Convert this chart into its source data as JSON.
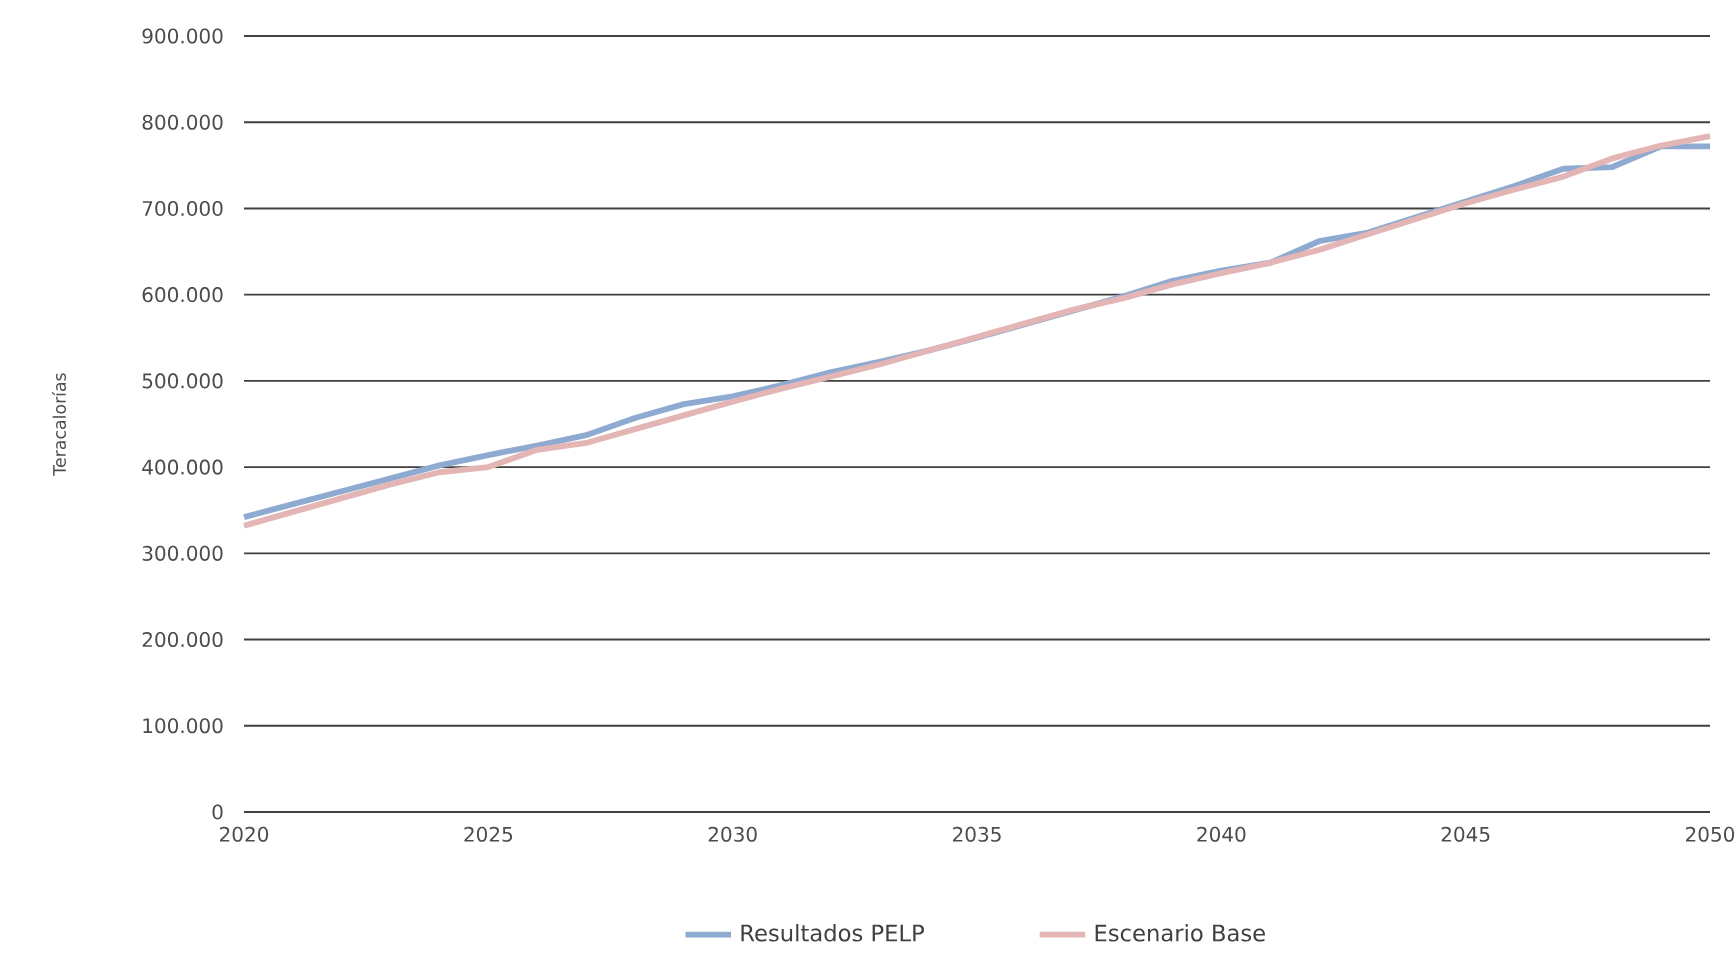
{
  "chart_data": {
    "type": "line",
    "ylabel": "Teracalorías",
    "x": [
      2020,
      2021,
      2022,
      2023,
      2024,
      2025,
      2026,
      2027,
      2028,
      2029,
      2030,
      2031,
      2032,
      2033,
      2034,
      2035,
      2036,
      2037,
      2038,
      2039,
      2040,
      2041,
      2042,
      2043,
      2044,
      2045,
      2046,
      2047,
      2048,
      2049,
      2050
    ],
    "series": [
      {
        "name": "Resultados PELP",
        "color": "#8eaad0",
        "values": [
          342000,
          357000,
          372000,
          387000,
          402000,
          414000,
          425000,
          437000,
          457000,
          473000,
          482000,
          495000,
          510000,
          522000,
          535000,
          550000,
          566000,
          582000,
          598000,
          616000,
          628000,
          637000,
          662000,
          672000,
          690000,
          708000,
          726000,
          746000,
          748000,
          772000,
          772000
        ]
      },
      {
        "name": "Escenario Base",
        "color": "#e3b5b5",
        "values": [
          332000,
          348000,
          364000,
          380000,
          394000,
          400000,
          420000,
          428000,
          444000,
          460000,
          476000,
          491000,
          505000,
          519000,
          535000,
          551000,
          567000,
          583000,
          596000,
          612000,
          625000,
          637000,
          652000,
          670000,
          688000,
          706000,
          722000,
          737000,
          758000,
          773000,
          784000
        ]
      }
    ],
    "xlim": [
      2020,
      2050
    ],
    "xticks": [
      2020,
      2025,
      2030,
      2035,
      2040,
      2045,
      2050
    ],
    "ylim": [
      0,
      900000
    ],
    "yticks": [
      {
        "value": 0,
        "label": "0"
      },
      {
        "value": 100000,
        "label": "100.000"
      },
      {
        "value": 200000,
        "label": "200.000"
      },
      {
        "value": 300000,
        "label": "300.000"
      },
      {
        "value": 400000,
        "label": "400.000"
      },
      {
        "value": 500000,
        "label": "500.000"
      },
      {
        "value": 600000,
        "label": "600.000"
      },
      {
        "value": 700000,
        "label": "700.000"
      },
      {
        "value": 800000,
        "label": "800.000"
      },
      {
        "value": 900000,
        "label": "900.000"
      }
    ],
    "grid": "y",
    "legend": "bottom",
    "marker": "none",
    "line_style": "solid"
  }
}
